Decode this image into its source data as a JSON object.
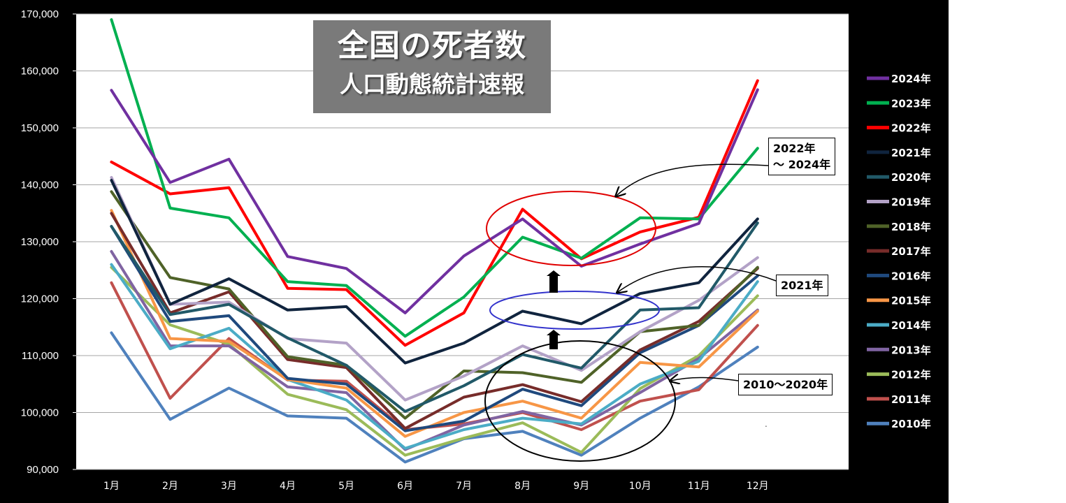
{
  "chart_data": {
    "type": "line",
    "title": "全国の死者数",
    "subtitle": "人口動態統計速報",
    "categories": [
      "1月",
      "2月",
      "3月",
      "4月",
      "5月",
      "6月",
      "7月",
      "8月",
      "9月",
      "10月",
      "11月",
      "12月"
    ],
    "ylim": [
      90000,
      170000
    ],
    "yticks": [
      "90,000",
      "100,000",
      "110,000",
      "120,000",
      "130,000",
      "140,000",
      "150,000",
      "160,000",
      "170,000"
    ],
    "ytick_values": [
      90000,
      100000,
      110000,
      120000,
      130000,
      140000,
      150000,
      160000,
      170000
    ],
    "grid": true,
    "legend_position": "right",
    "series": [
      {
        "name": "2010年",
        "color": "#4f81bd",
        "values": [
          114000,
          98800,
          104300,
          99400,
          99000,
          91300,
          95400,
          96700,
          92500,
          99000,
          104500,
          111500
        ]
      },
      {
        "name": "2011年",
        "color": "#c0504d",
        "values": [
          122800,
          102500,
          113000,
          105700,
          105500,
          97000,
          98000,
          100000,
          97000,
          102000,
          104000,
          115300
        ]
      },
      {
        "name": "2012年",
        "color": "#9bbb59",
        "values": [
          125500,
          115400,
          112000,
          103200,
          100500,
          92500,
          95500,
          98200,
          93000,
          104200,
          110000,
          120500
        ]
      },
      {
        "name": "2013年",
        "color": "#8064a2",
        "values": [
          128300,
          111700,
          111700,
          104500,
          103500,
          93500,
          97800,
          100200,
          97800,
          103500,
          109500,
          118000
        ]
      },
      {
        "name": "2014年",
        "color": "#4bacc6",
        "values": [
          126000,
          111200,
          114800,
          105800,
          102200,
          93700,
          97000,
          99000,
          98000,
          105000,
          109000,
          123000
        ]
      },
      {
        "name": "2015年",
        "color": "#f79646",
        "values": [
          135500,
          113000,
          112500,
          105800,
          104300,
          95800,
          100000,
          102000,
          99000,
          108800,
          108000,
          117800
        ]
      },
      {
        "name": "2016年",
        "color": "#1f497d",
        "values": [
          132700,
          116000,
          117000,
          106000,
          105000,
          96800,
          98500,
          104100,
          101200,
          110500,
          115300,
          124000
        ]
      },
      {
        "name": "2017年",
        "color": "#772c2a",
        "values": [
          135000,
          117500,
          121200,
          109300,
          107900,
          97200,
          102700,
          104900,
          101900,
          111000,
          116000,
          125300
        ]
      },
      {
        "name": "2018年",
        "color": "#4f6228",
        "values": [
          138800,
          123700,
          121700,
          109800,
          108300,
          99000,
          107300,
          107000,
          105300,
          114200,
          115300,
          125500
        ]
      },
      {
        "name": "2019年",
        "color": "#b3a2c7",
        "values": [
          141300,
          119000,
          119400,
          113000,
          112200,
          102200,
          106400,
          111700,
          107400,
          114200,
          119700,
          127200
        ]
      },
      {
        "name": "2020年",
        "color": "#215968",
        "values": [
          132700,
          117200,
          119000,
          113100,
          108300,
          100200,
          104700,
          110200,
          107800,
          118000,
          118400,
          133300
        ]
      },
      {
        "name": "2021年",
        "color": "#10243e",
        "values": [
          140800,
          119000,
          123500,
          118000,
          118600,
          108700,
          112200,
          117800,
          115600,
          120900,
          122800,
          134000
        ]
      },
      {
        "name": "2022年",
        "color": "#ff0000",
        "values": [
          144000,
          138400,
          139500,
          121800,
          121600,
          111800,
          117500,
          135700,
          127000,
          131700,
          134300,
          158300
        ]
      },
      {
        "name": "2023年",
        "color": "#00b050",
        "values": [
          169000,
          135900,
          134200,
          123000,
          122300,
          113400,
          120300,
          130800,
          127100,
          134200,
          134000,
          146400
        ]
      },
      {
        "name": "2024年",
        "color": "#7030a0",
        "values": [
          156600,
          140400,
          144500,
          127400,
          125300,
          117500,
          127500,
          134000,
          125700,
          129600,
          133200,
          156700
        ]
      }
    ],
    "annotations": [
      "2022年\n～ 2024年",
      "2021年",
      "2010～2020年"
    ]
  },
  "callouts": {
    "c2224_line1": "2022年",
    "c2224_line2": "～ 2024年",
    "c2021": "2021年",
    "c1020": "2010～2020年"
  },
  "stray_mark": "."
}
